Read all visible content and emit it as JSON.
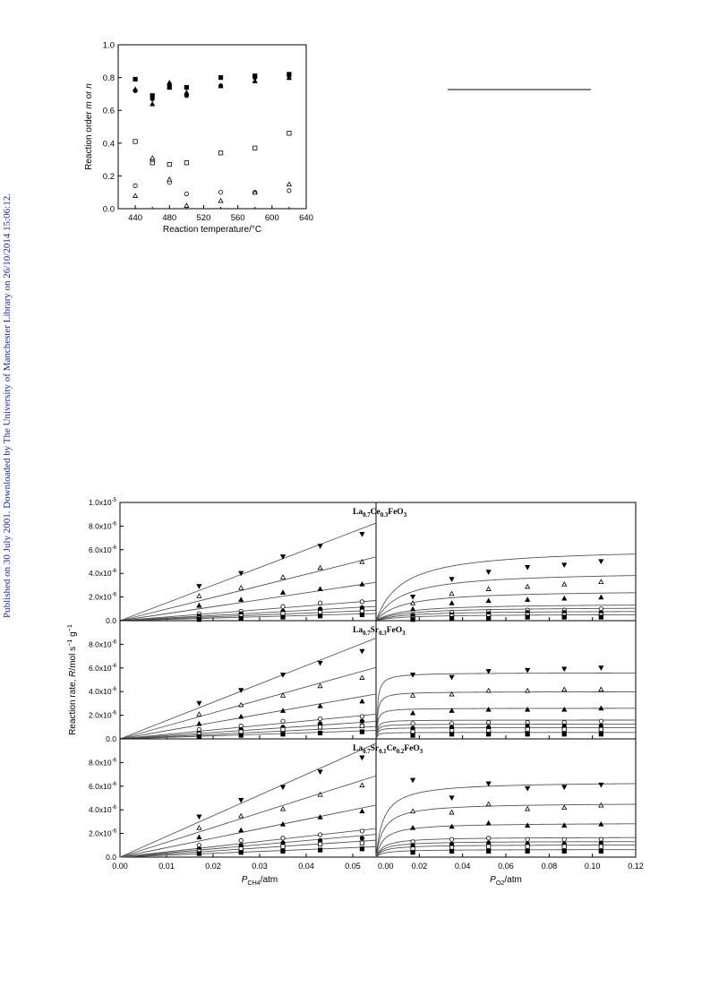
{
  "side_note": "Published on 30 July 2001. Downloaded by The University of Manchester Library on 26/10/2014 15:06:12.",
  "chart_data": [
    {
      "type": "scatter",
      "xlabel": "Reaction temperature/°C",
      "ylabel": "Reaction order m or n",
      "ylabel_parts": [
        "Reaction order ",
        "m",
        " or ",
        "n"
      ],
      "xlim": [
        420,
        640
      ],
      "ylim": [
        0,
        1.0
      ],
      "xticks": [
        "440",
        "480",
        "520",
        "560",
        "600",
        "640"
      ],
      "yticks": [
        "0.0",
        "0.2",
        "0.4",
        "0.6",
        "0.8",
        "1.0"
      ],
      "series": [
        {
          "marker": "square-filled",
          "x": [
            440,
            460,
            480,
            500,
            540,
            580,
            620
          ],
          "y": [
            0.79,
            0.69,
            0.74,
            0.74,
            0.8,
            0.81,
            0.82
          ]
        },
        {
          "marker": "circle-filled",
          "x": [
            440,
            460,
            480,
            500,
            540,
            580,
            620
          ],
          "y": [
            0.72,
            0.67,
            0.76,
            0.69,
            0.75,
            0.8,
            0.81
          ]
        },
        {
          "marker": "triangle-filled",
          "x": [
            440,
            460,
            480,
            500,
            540,
            580,
            620
          ],
          "y": [
            0.73,
            0.64,
            0.77,
            0.71,
            0.75,
            0.78,
            0.8
          ]
        },
        {
          "marker": "square-open",
          "x": [
            440,
            460,
            480,
            500,
            540,
            580,
            620
          ],
          "y": [
            0.41,
            0.28,
            0.27,
            0.28,
            0.34,
            0.37,
            0.46
          ]
        },
        {
          "marker": "circle-open",
          "x": [
            440,
            460,
            480,
            500,
            540,
            580,
            620
          ],
          "y": [
            0.14,
            0.3,
            0.16,
            0.09,
            0.1,
            0.1,
            0.11
          ]
        },
        {
          "marker": "triangle-open",
          "x": [
            440,
            460,
            480,
            500,
            540,
            580,
            620
          ],
          "y": [
            0.08,
            0.31,
            0.18,
            0.02,
            0.05,
            0.1,
            0.15
          ]
        }
      ]
    },
    {
      "type": "scatter",
      "ylabel": "Reaction rate, R/mol s⁻¹ g⁻¹",
      "ylabel_parts": [
        "Reaction rate, ",
        "R",
        "/mol s",
        "−1",
        " g",
        "−1"
      ],
      "y_ticks_top": [
        "1.0x10",
        "-5",
        "8.0x10",
        "-6",
        "6.0x10",
        "-6",
        "4.0x10",
        "-6",
        "2.0x10",
        "-6",
        "0.0"
      ],
      "y_ticks": [
        "8.0x10",
        "-6",
        "6.0x10",
        "-6",
        "4.0x10",
        "-6",
        "2.0x10",
        "-6",
        "0.0"
      ],
      "ylim": [
        0,
        1e-05
      ],
      "left_xlabel_parts": [
        "P",
        "CH",
        "4",
        "/atm"
      ],
      "left_xlim": [
        0,
        0.055
      ],
      "left_xticks": [
        "0.00",
        "0.01",
        "0.02",
        "0.03",
        "0.04",
        "0.05"
      ],
      "right_xlabel_parts": [
        "P",
        "O",
        "2",
        "/atm"
      ],
      "right_xlim": [
        0,
        0.12
      ],
      "right_xticks": [
        "0.00",
        "0.02",
        "0.04",
        "0.06",
        "0.08",
        "0.10",
        "0.12"
      ],
      "marker_order": [
        "triangle-down-filled",
        "triangle-open",
        "triangle-filled",
        "circle-open",
        "circle-filled",
        "square-open",
        "square-filled"
      ],
      "panels": [
        {
          "label_parts": [
            "La",
            "0.7",
            "Ce",
            "0.3",
            "FeO",
            "3"
          ],
          "ch4_x": [
            0.017,
            0.026,
            0.035,
            0.043,
            0.052
          ],
          "ch4_slopes": [
            0.00015,
            9.8e-05,
            5.9e-05,
            3.1e-05,
            2.2e-05,
            1.6e-05,
            1.1e-05
          ],
          "ch4_points": [
            [
              2.9e-06,
              4e-06,
              5.4e-06,
              6.3e-06,
              7.3e-06
            ],
            [
              2.1e-06,
              2.8e-06,
              3.7e-06,
              4.5e-06,
              5e-06
            ],
            [
              1.3e-06,
              1.8e-06,
              2.4e-06,
              2.7e-06,
              3.1e-06
            ],
            [
              6e-07,
              8e-07,
              1.2e-06,
              1.5e-06,
              1.6e-06
            ],
            [
              4e-07,
              6e-07,
              8e-07,
              1e-06,
              1.1e-06
            ],
            [
              2e-07,
              4e-07,
              6e-07,
              7e-07,
              8e-07
            ],
            [
              1e-07,
              2e-07,
              3e-07,
              4e-07,
              5e-07
            ]
          ],
          "o2_x": [
            0.017,
            0.035,
            0.052,
            0.07,
            0.087,
            0.104
          ],
          "o2_vmax": [
            6.2e-06,
            4.2e-06,
            2.6e-06,
            1.45e-06,
            1.15e-06,
            8.5e-07,
            5.5e-07
          ],
          "o2_k": 0.012,
          "o2_points": [
            [
              2e-06,
              3.5e-06,
              4.1e-06,
              4.5e-06,
              4.7e-06,
              5e-06
            ],
            [
              1.5e-06,
              2.3e-06,
              2.7e-06,
              2.9e-06,
              3.1e-06,
              3.3e-06
            ],
            [
              1e-06,
              1.5e-06,
              1.7e-06,
              1.8e-06,
              1.9e-06,
              2e-06
            ],
            [
              5e-07,
              7e-07,
              8e-07,
              9e-07,
              9e-07,
              1e-06
            ],
            [
              4e-07,
              5e-07,
              6e-07,
              7e-07,
              7e-07,
              7e-07
            ],
            [
              2e-07,
              4e-07,
              4e-07,
              5e-07,
              5e-07,
              5e-07
            ],
            [
              1e-07,
              2e-07,
              2e-07,
              3e-07,
              3e-07,
              3e-07
            ]
          ]
        },
        {
          "label_parts": [
            "La",
            "0.7",
            "Sr",
            "0.3",
            "FeO",
            "3"
          ],
          "ch4_x": [
            0.017,
            0.026,
            0.035,
            0.043,
            0.052
          ],
          "ch4_slopes": [
            0.000155,
            0.00011,
            6.9e-05,
            3.8e-05,
            2.7e-05,
            1.9e-05,
            1.3e-05
          ],
          "ch4_points": [
            [
              3e-06,
              4.1e-06,
              5.4e-06,
              6.4e-06,
              7.4e-06
            ],
            [
              2.1e-06,
              2.9e-06,
              3.7e-06,
              4.5e-06,
              5.2e-06
            ],
            [
              1.3e-06,
              1.9e-06,
              2.4e-06,
              2.8e-06,
              3.2e-06
            ],
            [
              8e-07,
              1.1e-06,
              1.5e-06,
              1.7e-06,
              1.9e-06
            ],
            [
              5e-07,
              8e-07,
              1e-06,
              1.3e-06,
              1.5e-06
            ],
            [
              4e-07,
              6e-07,
              8e-07,
              1e-06,
              1.1e-06
            ],
            [
              2e-07,
              3e-07,
              4e-07,
              5e-07,
              6e-07
            ]
          ],
          "o2_x": [
            0.017,
            0.035,
            0.052,
            0.07,
            0.087,
            0.104
          ],
          "o2_vmax": [
            5.6e-06,
            4e-06,
            2.6e-06,
            1.6e-06,
            1.25e-06,
            9.5e-07,
            5.5e-07
          ],
          "o2_k": 0.0006,
          "o2_points": [
            [
              5.4e-06,
              5.2e-06,
              5.7e-06,
              5.8e-06,
              5.9e-06,
              6e-06
            ],
            [
              3.7e-06,
              3.8e-06,
              4.1e-06,
              4.1e-06,
              4.2e-06,
              4.2e-06
            ],
            [
              2.2e-06,
              2.4e-06,
              2.5e-06,
              2.5e-06,
              2.5e-06,
              2.6e-06
            ],
            [
              1.3e-06,
              1.3e-06,
              1.4e-06,
              1.4e-06,
              1.4e-06,
              1.5e-06
            ],
            [
              9e-07,
              1e-06,
              1e-06,
              1.1e-06,
              1.1e-06,
              1.1e-06
            ],
            [
              6e-07,
              7e-07,
              7e-07,
              8e-07,
              8e-07,
              8e-07
            ],
            [
              3e-07,
              4e-07,
              4e-07,
              4e-07,
              4e-07,
              4e-07
            ]
          ]
        },
        {
          "label_parts": [
            "La",
            "0.7",
            "Sr",
            "0.1",
            "Ce",
            "0.2",
            "FeO",
            "3"
          ],
          "ch4_x": [
            0.017,
            0.026,
            0.035,
            0.043,
            0.052
          ],
          "ch4_slopes": [
            0.000175,
            0.000125,
            8e-05,
            4.4e-05,
            3.5e-05,
            2.6e-05,
            1.6e-05
          ],
          "ch4_points": [
            [
              3.4e-06,
              4.8e-06,
              5.9e-06,
              7.2e-06,
              8.4e-06
            ],
            [
              2.5e-06,
              3.5e-06,
              4.1e-06,
              5.3e-06,
              6.1e-06
            ],
            [
              1.7e-06,
              2.3e-06,
              2.8e-06,
              3.4e-06,
              3.9e-06
            ],
            [
              1e-06,
              1.4e-06,
              1.6e-06,
              1.9e-06,
              2.2e-06
            ],
            [
              7e-07,
              1e-06,
              1.2e-06,
              1.4e-06,
              1.6e-06
            ],
            [
              5e-07,
              7e-07,
              9e-07,
              1.1e-06,
              1.2e-06
            ],
            [
              3e-07,
              4e-07,
              5e-07,
              6e-07,
              7e-07
            ]
          ],
          "o2_x": [
            0.017,
            0.035,
            0.052,
            0.07,
            0.087,
            0.104
          ],
          "o2_vmax": [
            6.4e-06,
            4.6e-06,
            2.9e-06,
            1.7e-06,
            1.35e-06,
            1.05e-06,
            6.5e-07
          ],
          "o2_k": 0.0035,
          "o2_points": [
            [
              6.5e-06,
              5e-06,
              6.2e-06,
              5.8e-06,
              5.9e-06,
              6.1e-06
            ],
            [
              3.9e-06,
              3.8e-06,
              4.5e-06,
              4.1e-06,
              4.2e-06,
              4.4e-06
            ],
            [
              2.5e-06,
              2.6e-06,
              2.9e-06,
              2.7e-06,
              2.7e-06,
              2.8e-06
            ],
            [
              1.3e-06,
              1.5e-06,
              1.6e-06,
              1.5e-06,
              1.5e-06,
              1.5e-06
            ],
            [
              1e-06,
              1.1e-06,
              1.2e-06,
              1.1e-06,
              1.1e-06,
              1.2e-06
            ],
            [
              7e-07,
              8e-07,
              9e-07,
              9e-07,
              9e-07,
              9e-07
            ],
            [
              4e-07,
              5e-07,
              5e-07,
              5e-07,
              5e-07,
              5e-07
            ]
          ]
        }
      ]
    }
  ]
}
